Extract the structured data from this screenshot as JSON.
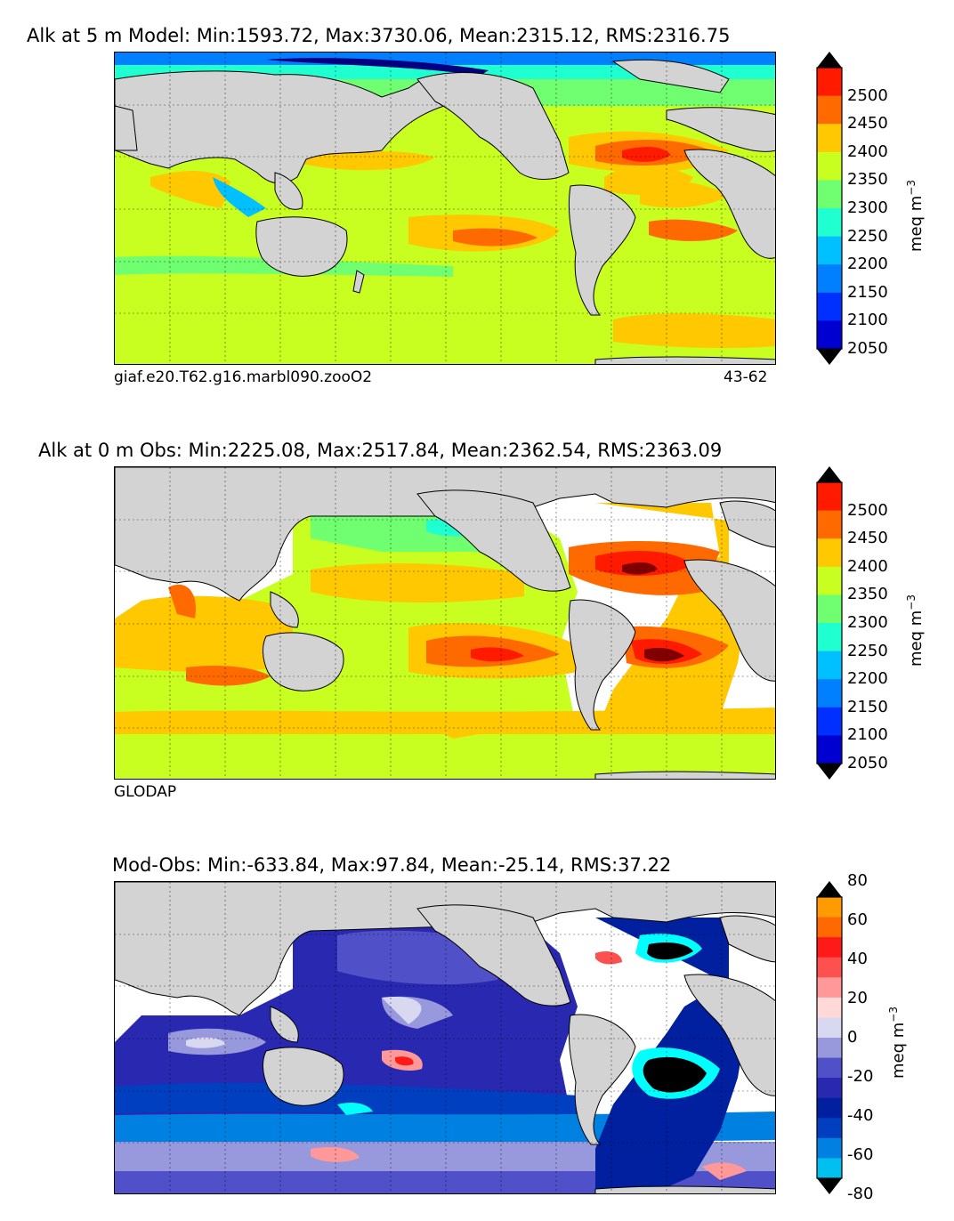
{
  "panels": [
    {
      "id": "model",
      "title": "Alk at 5 m Model: Min:1593.72, Max:3730.06, Mean:2315.12, RMS:2316.75",
      "left_label": "giaf.e20.T62.g16.marbl090.zooO2",
      "right_label": "43-62",
      "colorbar": {
        "ticks": [
          "2500",
          "2450",
          "2400",
          "2350",
          "2300",
          "2250",
          "2200",
          "2150",
          "2100",
          "2050"
        ],
        "unit": "meq m",
        "unit_exp": "−3",
        "colors": [
          "#000080",
          "#0000d0",
          "#0030ff",
          "#0080ff",
          "#00c0ff",
          "#20ffd0",
          "#70ff70",
          "#c8ff20",
          "#ffc800",
          "#ff6a00",
          "#ff1a00",
          "#800000"
        ]
      }
    },
    {
      "id": "obs",
      "title": "Alk at 0 m Obs: Min:2225.08, Max:2517.84, Mean:2362.54, RMS:2363.09",
      "left_label": "GLODAP",
      "colorbar": {
        "ticks": [
          "2500",
          "2450",
          "2400",
          "2350",
          "2300",
          "2250",
          "2200",
          "2150",
          "2100",
          "2050"
        ],
        "unit": "meq m",
        "unit_exp": "−3",
        "colors": [
          "#000080",
          "#0000d0",
          "#0030ff",
          "#0080ff",
          "#00c0ff",
          "#20ffd0",
          "#70ff70",
          "#c8ff20",
          "#ffc800",
          "#ff6a00",
          "#ff1a00",
          "#800000"
        ]
      }
    },
    {
      "id": "diff",
      "title": "Mod-Obs: Min:-633.84, Max:97.84, Mean:-25.14, RMS:37.22",
      "colorbar": {
        "ticks": [
          "80",
          "60",
          "40",
          "20",
          "0",
          "-20",
          "-40",
          "-60",
          "-80"
        ],
        "unit": "meq m",
        "unit_exp": "−3",
        "colors": [
          "#00ffff",
          "#00c0f0",
          "#0080e0",
          "#0040c0",
          "#0020a0",
          "#2828b0",
          "#5050c8",
          "#9898dd",
          "#d8d8f0",
          "#ffd8d8",
          "#ff9898",
          "#ff5050",
          "#ff1a1a",
          "#ff6a00",
          "#ff9a00",
          "#ffff00"
        ]
      }
    }
  ]
}
